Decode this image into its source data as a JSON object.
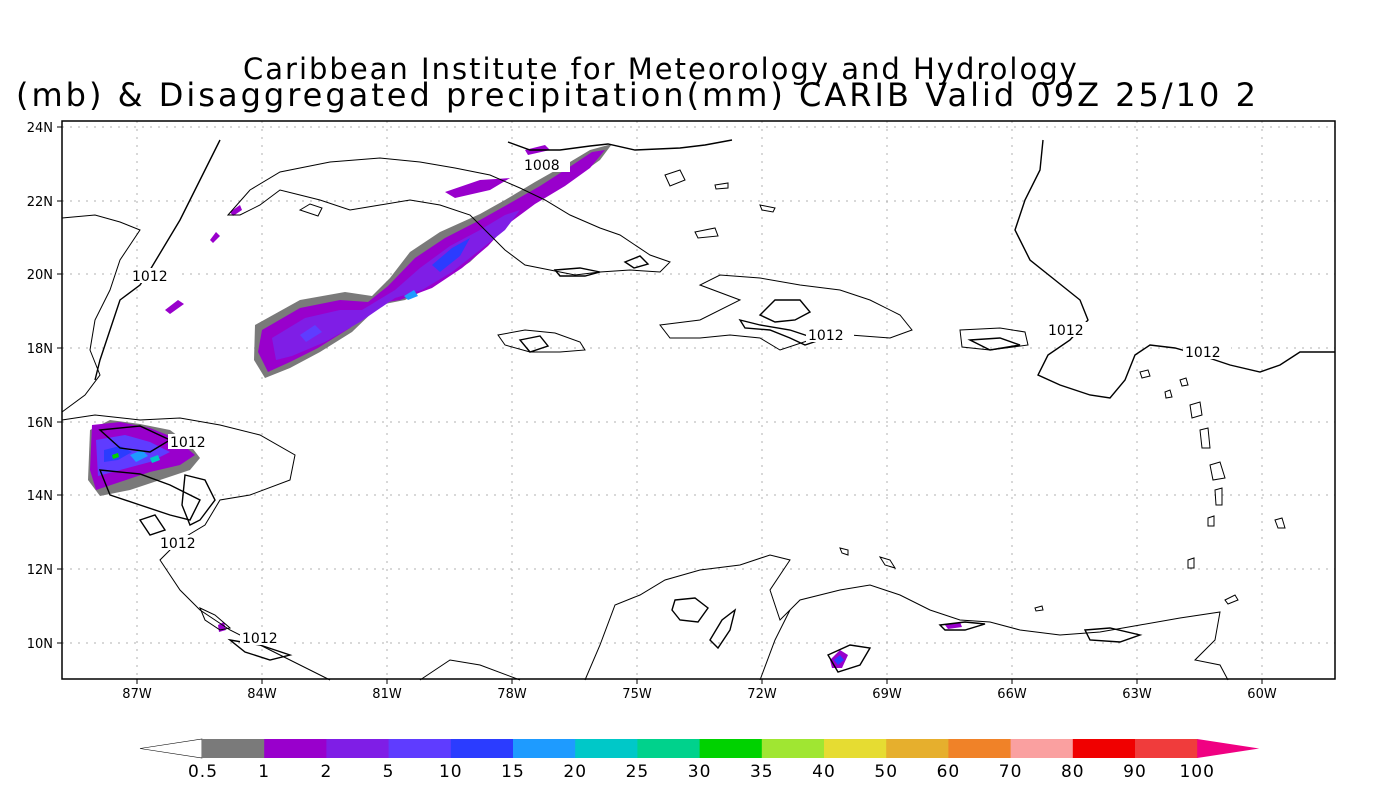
{
  "title": {
    "line1": "Caribbean Institute for Meteorology and Hydrology",
    "line2": "(mb) & Disaggregated precipitation(mm) CARIB Valid 09Z 25/10 2"
  },
  "axes": {
    "x_labels": [
      "87W",
      "84W",
      "81W",
      "78W",
      "75W",
      "72W",
      "69W",
      "66W",
      "63W",
      "60W"
    ],
    "y_labels": [
      "24N",
      "22N",
      "20N",
      "18N",
      "16N",
      "14N",
      "12N",
      "10N"
    ]
  },
  "isobar_labels": [
    "1008",
    "1012",
    "1012",
    "1012",
    "1012",
    "1012",
    "1012",
    "1012"
  ],
  "colorbar": {
    "labels": [
      "0.5",
      "1",
      "2",
      "5",
      "10",
      "15",
      "20",
      "25",
      "30",
      "35",
      "40",
      "50",
      "60",
      "70",
      "80",
      "90",
      "100"
    ],
    "colors": [
      "#7a7a7a",
      "#9900cc",
      "#7f1ee6",
      "#5f3cff",
      "#2b3cff",
      "#1e9bff",
      "#00c8c8",
      "#00d28c",
      "#00d200",
      "#a0e632",
      "#e6dc32",
      "#e6af2d",
      "#f08228",
      "#faa0a0",
      "#f00000",
      "#f03c3c",
      "#f00082"
    ]
  }
}
